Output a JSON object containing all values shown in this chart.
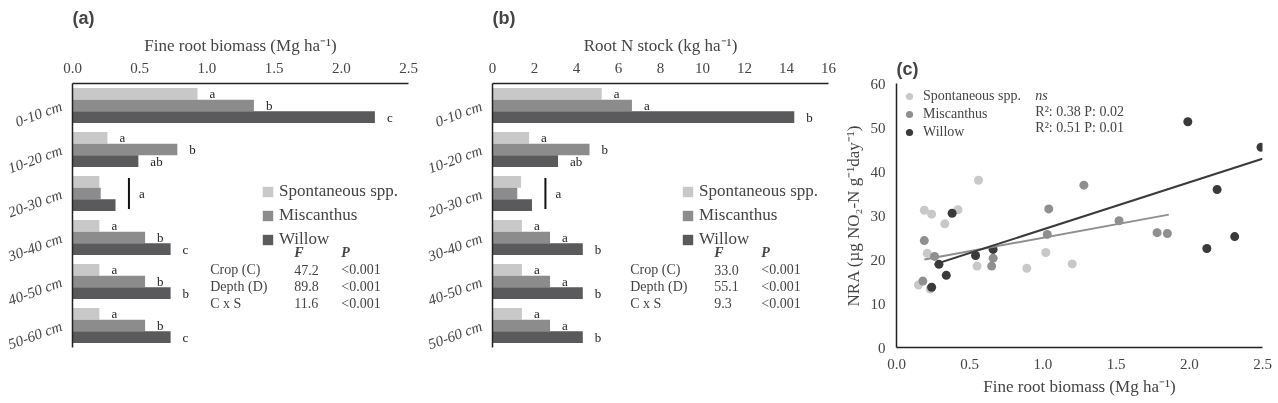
{
  "chart_data": [
    {
      "type": "bar",
      "orientation": "horizontal",
      "title": "(a)",
      "xlabel": "Fine root biomass (Mg ha⁻¹)",
      "categories": [
        "0-10 cm",
        "10-20 cm",
        "20-30 cm",
        "30-40 cm",
        "40-50 cm",
        "50-60 cm"
      ],
      "series": [
        {
          "name": "Spontaneous spp.",
          "color": "#c8c8c8",
          "values": [
            0.93,
            0.26,
            0.2,
            0.2,
            0.2,
            0.2
          ],
          "value_labels": [
            "a",
            "a",
            null,
            "a",
            "a",
            "a"
          ]
        },
        {
          "name": "Miscanthus",
          "color": "#8c8c8c",
          "values": [
            1.35,
            0.78,
            0.21,
            0.54,
            0.54,
            0.54
          ],
          "value_labels": [
            "b",
            "b",
            null,
            "b",
            "b",
            "b"
          ]
        },
        {
          "name": "Willow",
          "color": "#5a5a5c",
          "values": [
            2.25,
            0.49,
            0.32,
            0.73,
            0.73,
            0.73
          ],
          "value_labels": [
            "c",
            "ab",
            null,
            "c",
            "b",
            "c"
          ]
        }
      ],
      "xlim": [
        0,
        2.5
      ],
      "xticks": [
        {
          "value": 0,
          "label": "0.0"
        },
        {
          "value": 0.5,
          "label": "0.5"
        },
        {
          "value": 1,
          "label": "1.0"
        },
        {
          "value": 1.5,
          "label": "1.5"
        },
        {
          "value": 2,
          "label": "2.0"
        },
        {
          "value": 2.5,
          "label": "2.5"
        }
      ],
      "legend": "right",
      "annotations": [
        "a",
        "F",
        "P",
        "Crop (C)",
        "47.2",
        "<0.001",
        "Depth (D)",
        "89.8",
        "<0.001",
        "C x S",
        "11.6",
        "<0.001"
      ]
    },
    {
      "type": "bar",
      "orientation": "horizontal",
      "title": "(b)",
      "xlabel": "Root N stock (kg ha⁻¹)",
      "categories": [
        "0-10 cm",
        "10-20 cm",
        "20-30 cm",
        "30-40 cm",
        "40-50 cm",
        "50-60 cm"
      ],
      "series": [
        {
          "name": "Spontaneous spp.",
          "color": "#c8c8c8",
          "values": [
            5.2,
            1.74,
            1.36,
            1.4,
            1.4,
            1.4
          ],
          "value_labels": [
            "a",
            "a",
            null,
            "a",
            "a",
            "a"
          ]
        },
        {
          "name": "Miscanthus",
          "color": "#8c8c8c",
          "values": [
            6.64,
            4.62,
            1.18,
            2.74,
            2.74,
            2.74
          ],
          "value_labels": [
            "a",
            "b",
            null,
            "a",
            "a",
            "a"
          ]
        },
        {
          "name": "Willow",
          "color": "#5a5a5c",
          "values": [
            14.37,
            3.12,
            1.88,
            4.3,
            4.3,
            4.3
          ],
          "value_labels": [
            "b",
            "ab",
            null,
            "b",
            "b",
            "b"
          ]
        }
      ],
      "xlim": [
        0,
        16
      ],
      "xticks": [
        0,
        2,
        4,
        6,
        8,
        10,
        12,
        14,
        16
      ],
      "legend": "right",
      "annotations": [
        "a",
        "F",
        "P",
        "Crop (C)",
        "33.0",
        "<0.001",
        "Depth (D)",
        "55.1",
        "<0.001",
        "C x S",
        "9.3",
        "<0.001"
      ]
    },
    {
      "type": "scatter",
      "title": "(c)",
      "xlabel": "Fine root biomass (Mg ha⁻¹)",
      "ylabel": "NRA (µg NO₂-N g⁻¹day⁻¹)",
      "series": [
        {
          "name": "Spontaneous spp.",
          "color": "#c8c8c8",
          "marker": "circle",
          "x": [
            0.15,
            0.23,
            0.19,
            0.24,
            0.21,
            0.33,
            0.42,
            0.56,
            0.55,
            0.89,
            1.02,
            1.2
          ],
          "values": [
            14.2,
            13.3,
            31.2,
            30.3,
            21.4,
            28.1,
            31.3,
            38.0,
            18.5,
            18.0,
            21.6,
            19.0
          ]
        },
        {
          "name": "Miscanthus",
          "color": "#8f8f8f",
          "marker": "circle",
          "x": [
            0.19,
            0.18,
            0.26,
            0.66,
            0.65,
            1.04,
            1.03,
            1.28,
            1.52,
            1.78,
            1.85
          ],
          "values": [
            24.3,
            15.1,
            20.7,
            20.3,
            18.5,
            31.5,
            25.7,
            36.9,
            28.8,
            26.1,
            25.9
          ]
        },
        {
          "name": "Willow",
          "color": "#3a3a3a",
          "marker": "circle",
          "x": [
            0.24,
            0.29,
            0.34,
            0.38,
            0.54,
            0.66,
            1.99,
            2.12,
            2.19,
            2.31,
            2.49
          ],
          "values": [
            13.7,
            18.9,
            16.4,
            30.5,
            20.9,
            22.3,
            51.3,
            22.5,
            35.9,
            25.2,
            45.5
          ]
        },
        {
          "type": "line",
          "color": "#8f8f8f",
          "x": [
            0.19,
            1.86
          ],
          "values": [
            20.0,
            30.2
          ]
        },
        {
          "type": "line",
          "color": "#3a3a3a",
          "x": [
            0.26,
            2.5
          ],
          "values": [
            18.9,
            42.9
          ]
        }
      ],
      "xlim": [
        0,
        2.5
      ],
      "ylim": [
        0,
        60
      ],
      "xticks": [
        {
          "value": 0,
          "label": "0.0"
        },
        {
          "value": 0.5,
          "label": "0.5"
        },
        {
          "value": 1,
          "label": "1.0"
        },
        {
          "value": 1.5,
          "label": "1.5"
        },
        {
          "value": 2,
          "label": "2.0"
        },
        {
          "value": 2.5,
          "label": "2.5"
        }
      ],
      "yticks": [
        0,
        10,
        20,
        30,
        40,
        50,
        60
      ],
      "legend": "top left",
      "annotations": [
        "ns",
        "R²: 0.38  P: 0.02",
        "R²: 0.51  P: 0.01"
      ]
    }
  ]
}
